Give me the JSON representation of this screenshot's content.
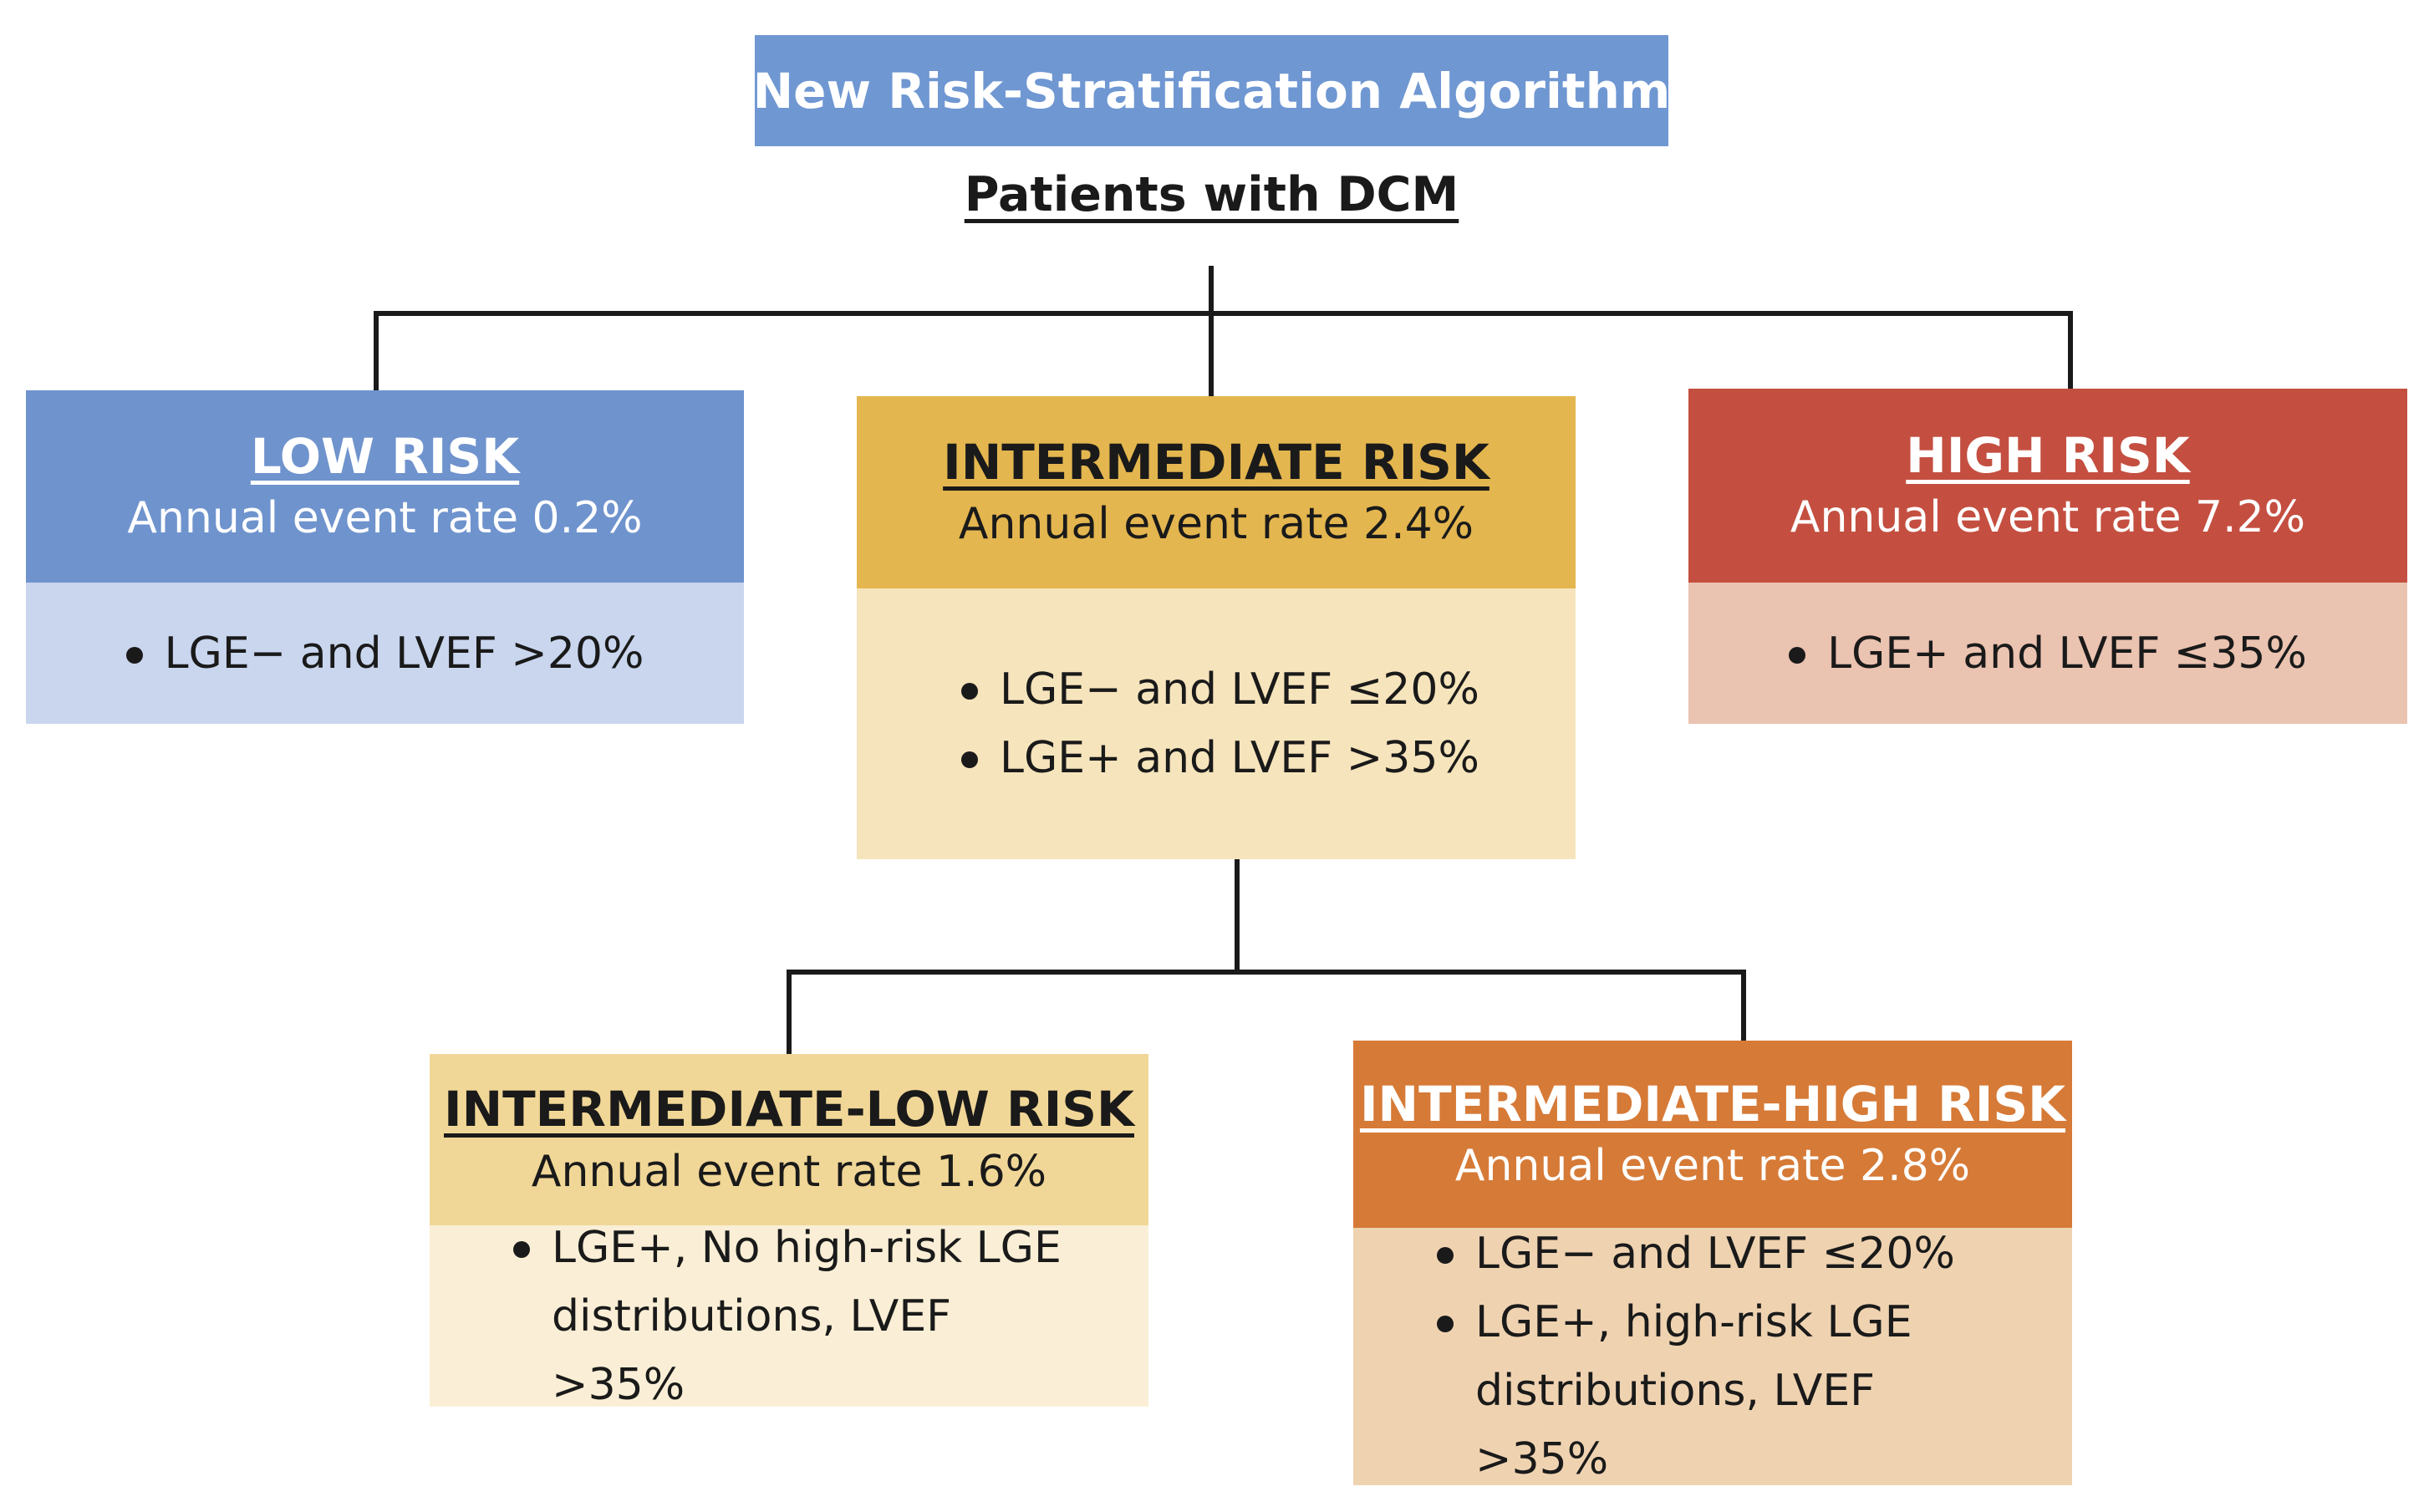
{
  "title": "New Risk-Stratification Algorithm",
  "subtitle": "Patients with DCM",
  "colors": {
    "title_bg": "#6f97d2",
    "low_head": "#6f93cd",
    "low_body": "#c9d6ee",
    "intermediate_head": "#e4b64f",
    "intermediate_body": "#f6e4bc",
    "high_head": "#c44f40",
    "high_body": "#ebc3b1",
    "int_low_head": "#f1d797",
    "int_low_body": "#faefd6",
    "int_high_head": "#d67a37",
    "int_high_body": "#efd3b1",
    "connector": "#1a1a1a"
  },
  "nodes": {
    "low": {
      "title": "LOW RISK",
      "rate": "Annual event rate 0.2%",
      "criteria": [
        "LGE− and LVEF >20%"
      ]
    },
    "intermediate": {
      "title": "INTERMEDIATE RISK",
      "rate": "Annual event rate 2.4%",
      "criteria": [
        "LGE− and LVEF ≤20%",
        "LGE+ and LVEF >35%"
      ]
    },
    "high": {
      "title": "HIGH RISK",
      "rate": "Annual event rate 7.2%",
      "criteria": [
        "LGE+ and LVEF ≤35%"
      ]
    },
    "int_low": {
      "title": "INTERMEDIATE-LOW RISK",
      "rate": "Annual event rate 1.6%",
      "criteria": [
        "LGE+, No high-risk LGE distributions, LVEF >35%"
      ]
    },
    "int_high": {
      "title": "INTERMEDIATE-HIGH RISK",
      "rate": "Annual event rate 2.8%",
      "criteria": [
        "LGE− and LVEF ≤20%",
        "LGE+, high-risk LGE distributions, LVEF >35%"
      ]
    }
  }
}
